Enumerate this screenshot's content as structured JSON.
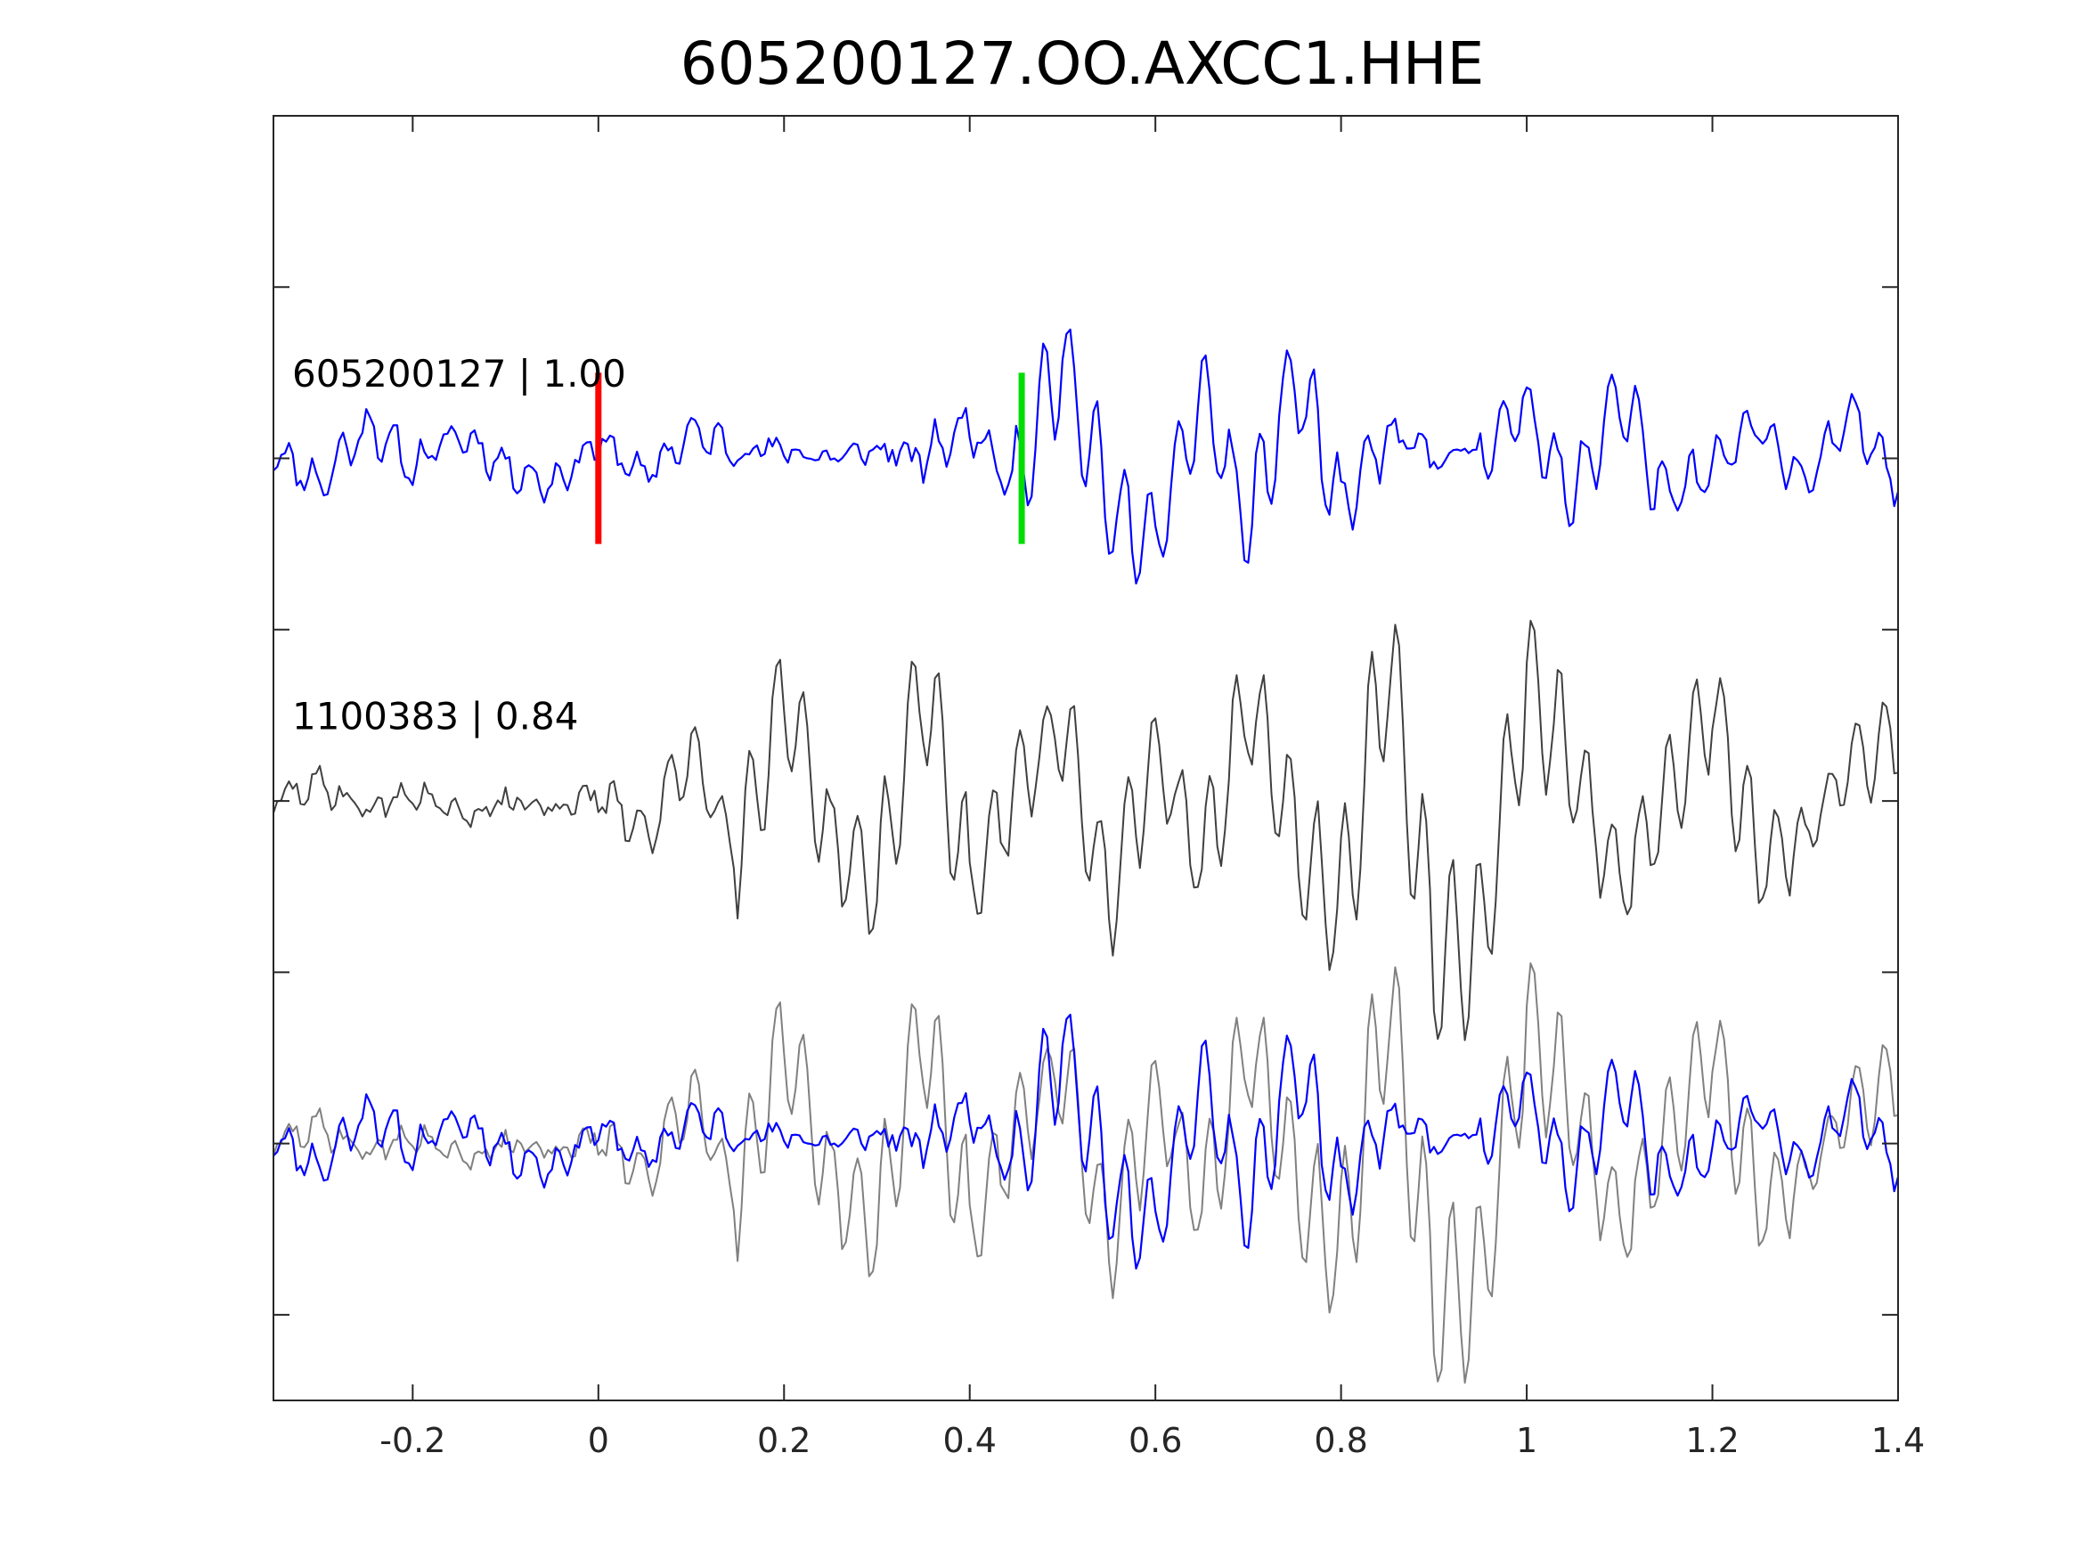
{
  "chart_data": {
    "type": "line",
    "title": "605200127.OO.AXCC1.HHE",
    "xlabel": "",
    "ylabel": "",
    "xlim": [
      -0.35,
      1.4
    ],
    "ylim": [
      0,
      7.5
    ],
    "grid": false,
    "x_ticks": [
      -0.2,
      0,
      0.2,
      0.4,
      0.6,
      0.8,
      1,
      1.2,
      1.4
    ],
    "x_tick_labels": [
      "-0.2",
      "0",
      "0.2",
      "0.4",
      "0.6",
      "0.8",
      "1",
      "1.2",
      "1.4"
    ],
    "y_ticks": [
      0.5,
      1.5,
      2.5,
      3.5,
      4.5,
      5.5,
      6.5
    ],
    "colors": {
      "master_trace": "#0000ff",
      "match_trace": "#404040",
      "match_overlay": "#808080",
      "p_pick": "#ff0000",
      "s_pick": "#00dd00",
      "axes": "#262626"
    },
    "picks": [
      {
        "phase": "P",
        "time": 0.0,
        "color": "#ff0000"
      },
      {
        "phase": "S",
        "time": 0.456,
        "color": "#00dd00"
      }
    ],
    "traces": [
      {
        "label": "605200127 | 1.00",
        "baseline": 5.5,
        "color": "#0000ff",
        "times": [
          -0.35,
          -0.3,
          -0.25,
          -0.2,
          -0.15,
          -0.1,
          -0.05,
          0.0,
          0.05,
          0.1,
          0.15,
          0.2,
          0.25,
          0.3,
          0.35,
          0.4,
          0.45,
          0.5,
          0.55,
          0.6,
          0.65,
          0.7,
          0.75,
          0.8,
          0.85,
          0.9,
          0.95,
          1.0,
          1.05,
          1.1,
          1.15,
          1.2,
          1.25,
          1.3,
          1.35,
          1.4
        ],
        "amplitudes": [
          0.05,
          -0.15,
          0.2,
          -0.05,
          0.15,
          -0.05,
          -0.15,
          0.1,
          -0.1,
          0.15,
          0.05,
          0.05,
          0.0,
          0.05,
          0.0,
          0.2,
          -0.15,
          0.6,
          -0.3,
          -0.5,
          0.4,
          -0.4,
          0.5,
          -0.3,
          0.15,
          0.0,
          0.05,
          0.3,
          -0.25,
          0.4,
          -0.25,
          -0.05,
          0.2,
          -0.15,
          0.25,
          -0.1
        ]
      },
      {
        "label": "1100383 | 0.84",
        "baseline": 3.5,
        "color": "#404040",
        "times": [
          -0.35,
          -0.3,
          -0.25,
          -0.2,
          -0.15,
          -0.1,
          -0.05,
          0.0,
          0.05,
          0.1,
          0.15,
          0.2,
          0.25,
          0.3,
          0.35,
          0.4,
          0.45,
          0.5,
          0.55,
          0.6,
          0.65,
          0.7,
          0.75,
          0.8,
          0.85,
          0.9,
          0.95,
          1.0,
          1.05,
          1.1,
          1.15,
          1.2,
          1.25,
          1.3,
          1.35,
          1.4
        ],
        "amplitudes": [
          0.0,
          0.1,
          -0.05,
          0.05,
          -0.1,
          0.0,
          -0.05,
          0.05,
          -0.2,
          0.3,
          -0.3,
          0.6,
          -0.25,
          -0.5,
          0.7,
          -0.5,
          0.1,
          0.45,
          -0.6,
          0.3,
          -0.4,
          0.6,
          -0.2,
          -0.7,
          0.9,
          -0.9,
          -0.8,
          0.7,
          0.2,
          -0.5,
          0.0,
          0.6,
          -0.4,
          -0.2,
          0.2,
          0.4
        ]
      },
      {
        "label": "",
        "baseline": 1.5,
        "color": "#808080",
        "description_of_overlay": "",
        "times": [
          -0.35,
          -0.3,
          -0.25,
          -0.2,
          -0.15,
          -0.1,
          -0.05,
          0.0,
          0.05,
          0.1,
          0.15,
          0.2,
          0.25,
          0.3,
          0.35,
          0.4,
          0.45,
          0.5,
          0.55,
          0.6,
          0.65,
          0.7,
          0.75,
          0.8,
          0.85,
          0.9,
          0.95,
          1.0,
          1.05,
          1.1,
          1.15,
          1.2,
          1.25,
          1.3,
          1.35,
          1.4
        ],
        "amplitudes": [
          0.0,
          0.1,
          -0.05,
          0.05,
          -0.1,
          0.0,
          -0.05,
          0.05,
          -0.2,
          0.3,
          -0.3,
          0.6,
          -0.25,
          -0.5,
          0.7,
          -0.5,
          0.1,
          0.45,
          -0.6,
          0.3,
          -0.4,
          0.6,
          -0.2,
          -0.7,
          0.9,
          -0.9,
          -0.8,
          0.7,
          0.2,
          -0.5,
          0.0,
          0.6,
          -0.4,
          -0.2,
          0.2,
          0.4
        ]
      },
      {
        "label": "",
        "baseline": 1.5,
        "color": "#0000ff",
        "times": [
          -0.35,
          -0.3,
          -0.25,
          -0.2,
          -0.15,
          -0.1,
          -0.05,
          0.0,
          0.05,
          0.1,
          0.15,
          0.2,
          0.25,
          0.3,
          0.35,
          0.4,
          0.45,
          0.5,
          0.55,
          0.6,
          0.65,
          0.7,
          0.75,
          0.8,
          0.85,
          0.9,
          0.95,
          1.0,
          1.05,
          1.1,
          1.15,
          1.2,
          1.25,
          1.3,
          1.35,
          1.4
        ],
        "amplitudes": [
          0.05,
          -0.15,
          0.2,
          -0.05,
          0.15,
          -0.05,
          -0.15,
          0.1,
          -0.1,
          0.15,
          0.05,
          0.05,
          0.0,
          0.05,
          0.0,
          0.2,
          -0.15,
          0.6,
          -0.3,
          -0.5,
          0.4,
          -0.4,
          0.5,
          -0.3,
          0.15,
          0.0,
          0.05,
          0.3,
          -0.25,
          0.4,
          -0.25,
          -0.05,
          0.2,
          -0.15,
          0.25,
          -0.1
        ]
      }
    ]
  }
}
